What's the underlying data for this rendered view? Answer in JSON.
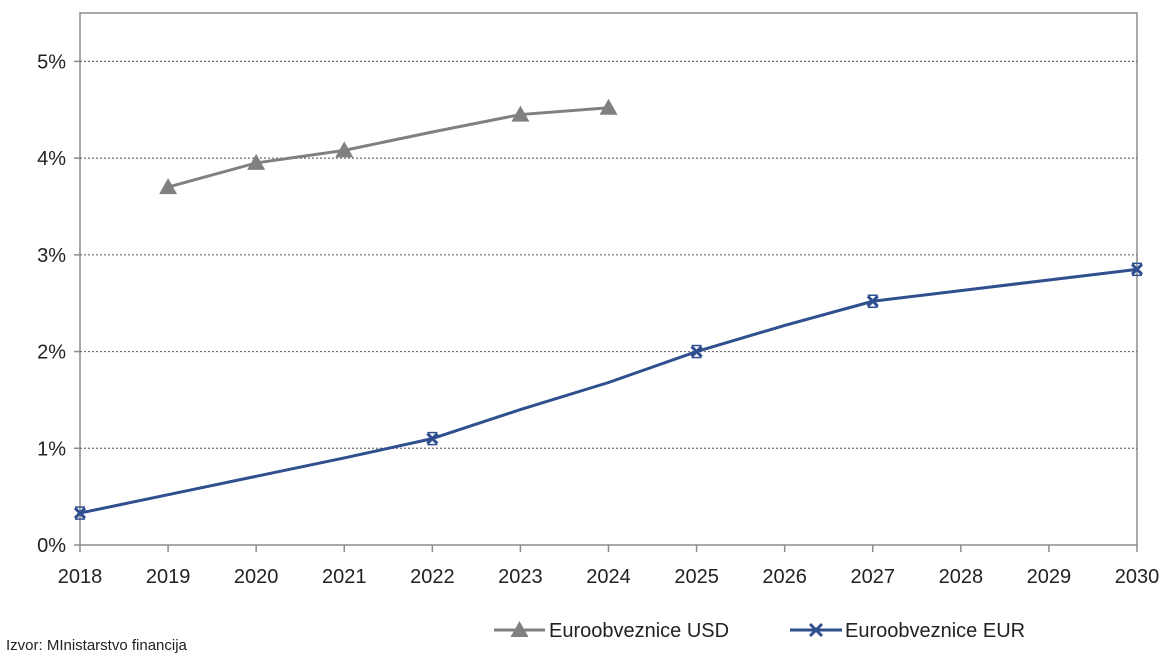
{
  "chart_data": {
    "type": "line",
    "x": [
      2018,
      2019,
      2020,
      2021,
      2022,
      2023,
      2024,
      2025,
      2026,
      2027,
      2028,
      2029,
      2030
    ],
    "x_tick_labels": [
      "2018",
      "2019",
      "2020",
      "2021",
      "2022",
      "2023",
      "2024",
      "2025",
      "2026",
      "2027",
      "2028",
      "2029",
      "2030"
    ],
    "y_tick_labels": [
      "0%",
      "1%",
      "2%",
      "3%",
      "4%",
      "5%"
    ],
    "ylim": [
      0,
      5.5
    ],
    "xlim": [
      2018,
      2030
    ],
    "grid": "horizontal dotted",
    "legend_position": "bottom-right",
    "series": [
      {
        "name": "Euroobveznice USD",
        "color": "#808080",
        "marker": "triangle",
        "marker_x": [
          2019,
          2020,
          2021,
          2023,
          2024
        ],
        "marker_y": [
          3.7,
          3.95,
          4.08,
          4.45,
          4.52
        ],
        "line_x": [
          2019,
          2020,
          2021,
          2022,
          2023,
          2024
        ],
        "line_y": [
          3.7,
          3.95,
          4.08,
          4.27,
          4.45,
          4.52
        ]
      },
      {
        "name": "Euroobveznice EUR",
        "color": "#2f4f8f",
        "marker": "x",
        "marker_x": [
          2018,
          2022,
          2025,
          2027,
          2030
        ],
        "marker_y": [
          0.33,
          1.1,
          2.0,
          2.52,
          2.85
        ],
        "line_x": [
          2018,
          2019,
          2020,
          2021,
          2022,
          2023,
          2024,
          2025,
          2026,
          2027,
          2028,
          2029,
          2030
        ],
        "line_y": [
          0.33,
          0.52,
          0.71,
          0.9,
          1.1,
          1.4,
          1.68,
          2.0,
          2.27,
          2.52,
          2.63,
          2.74,
          2.85
        ]
      }
    ]
  },
  "source_note": "Izvor: MInistarstvo financija"
}
